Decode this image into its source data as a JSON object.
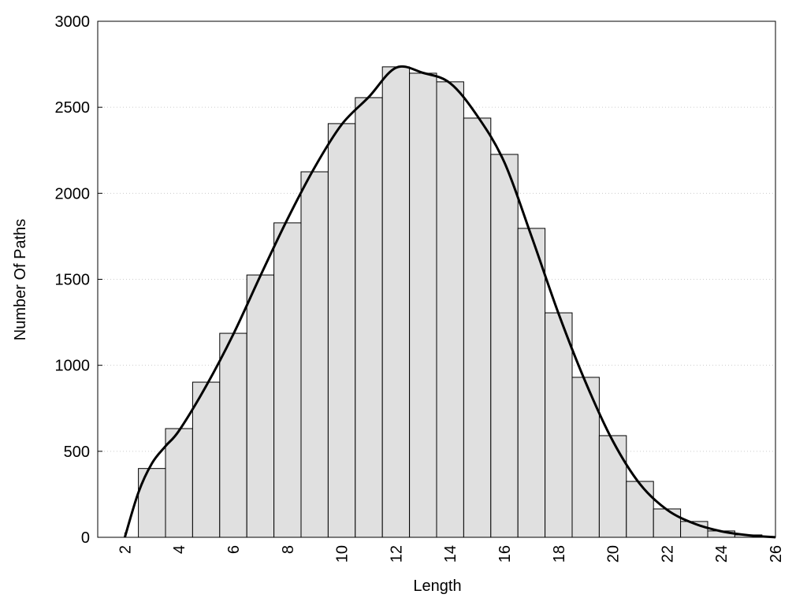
{
  "chart_data": {
    "type": "histogram",
    "xlabel": "Length",
    "ylabel": "Number Of Paths",
    "bins": [
      2.5,
      3.5,
      4.5,
      5.5,
      6.5,
      7.5,
      8.5,
      9.5,
      10.5,
      11.5,
      12.5,
      13.5,
      14.5,
      15.5,
      16.5,
      17.5,
      18.5,
      19.5,
      20.5,
      21.5,
      22.5,
      23.5,
      24.5,
      25.5
    ],
    "values": [
      400,
      632,
      902,
      1186,
      1525,
      1828,
      2125,
      2405,
      2556,
      2735,
      2698,
      2648,
      2437,
      2226,
      1796,
      1305,
      930,
      591,
      325,
      165,
      92,
      37,
      14
    ],
    "color": "#e0e0e0",
    "curve": {
      "color": "#000000",
      "x": [
        2,
        2.5,
        3,
        3.5,
        4,
        5,
        6,
        7,
        8,
        9,
        10,
        11,
        12,
        13,
        14,
        15,
        16,
        17,
        18,
        19,
        20,
        21,
        22,
        23,
        24,
        25,
        26
      ],
      "values": [
        0,
        260,
        430,
        530,
        620,
        880,
        1180,
        1520,
        1850,
        2150,
        2400,
        2560,
        2730,
        2700,
        2640,
        2450,
        2180,
        1750,
        1300,
        900,
        560,
        310,
        160,
        80,
        35,
        12,
        0
      ]
    },
    "xlim": [
      1,
      26
    ],
    "xticks": [
      2,
      4,
      6,
      8,
      10,
      12,
      14,
      16,
      18,
      20,
      22,
      24,
      26
    ],
    "ylim": [
      0,
      3000
    ],
    "yticks": [
      0,
      500,
      1000,
      1500,
      2000,
      2500,
      3000
    ],
    "grid": true
  }
}
